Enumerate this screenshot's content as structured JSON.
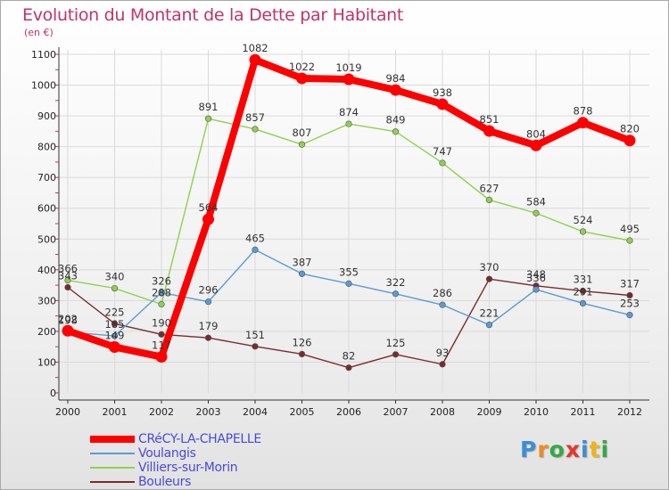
{
  "header": {
    "title": "Evolution du Montant de la Dette par Habitant",
    "unit": "(en €)"
  },
  "brand": {
    "letters": [
      "P",
      "r",
      "o",
      "x",
      "i",
      "t",
      "i"
    ],
    "colors": [
      "#3a8fd6",
      "#f08c1a",
      "#35a845",
      "#e8352a",
      "#3a8fd6",
      "#f0b41a",
      "#35a845"
    ]
  },
  "chart_data": {
    "type": "line",
    "title": "Evolution du Montant de la Dette par Habitant",
    "ylabel": "(en €)",
    "xlabel": "",
    "x": [
      "2000",
      "2001",
      "2002",
      "2003",
      "2004",
      "2005",
      "2006",
      "2007",
      "2008",
      "2009",
      "2010",
      "2011",
      "2012"
    ],
    "ylim": [
      0,
      1100
    ],
    "yticks": [
      "0",
      "100",
      "200",
      "300",
      "400",
      "500",
      "600",
      "700",
      "800",
      "900",
      "1000",
      "1100"
    ],
    "grid": true,
    "legend_position": "bottom-left",
    "series": [
      {
        "name": "CRéCY-LA-CHAPELLE",
        "color": "#ff0000",
        "values": [
          202,
          149,
          117,
          564,
          1082,
          1022,
          1019,
          984,
          938,
          851,
          804,
          878,
          820
        ]
      },
      {
        "name": "Voulangis",
        "color": "#5b9bd5",
        "values": [
          198,
          185,
          326,
          296,
          465,
          387,
          355,
          322,
          286,
          221,
          336,
          291,
          253
        ]
      },
      {
        "name": "Villiers-sur-Morin",
        "color": "#8fd14f",
        "values": [
          366,
          340,
          288,
          891,
          857,
          807,
          874,
          849,
          747,
          627,
          584,
          524,
          495
        ]
      },
      {
        "name": "Bouleurs",
        "color": "#7a2a2a",
        "values": [
          343,
          225,
          190,
          179,
          151,
          126,
          82,
          125,
          93,
          370,
          348,
          331,
          317
        ]
      }
    ],
    "data_labels": [
      [
        "202",
        "149",
        "117",
        "564",
        "1082",
        "1022",
        "1019",
        "984",
        "938",
        "851",
        "804",
        "878",
        "820"
      ],
      [
        "198",
        "185",
        "326",
        "296",
        "465",
        "387",
        "355",
        "322",
        "286",
        "221",
        "336",
        "291",
        "253"
      ],
      [
        "366",
        "340",
        "288",
        "891",
        "857",
        "807",
        "874",
        "849",
        "747",
        "627",
        "584",
        "524",
        "495"
      ],
      [
        "343",
        "225",
        "190",
        "179",
        "151",
        "126",
        "82",
        "125",
        "93",
        "370",
        "348",
        "331",
        "317"
      ]
    ]
  }
}
